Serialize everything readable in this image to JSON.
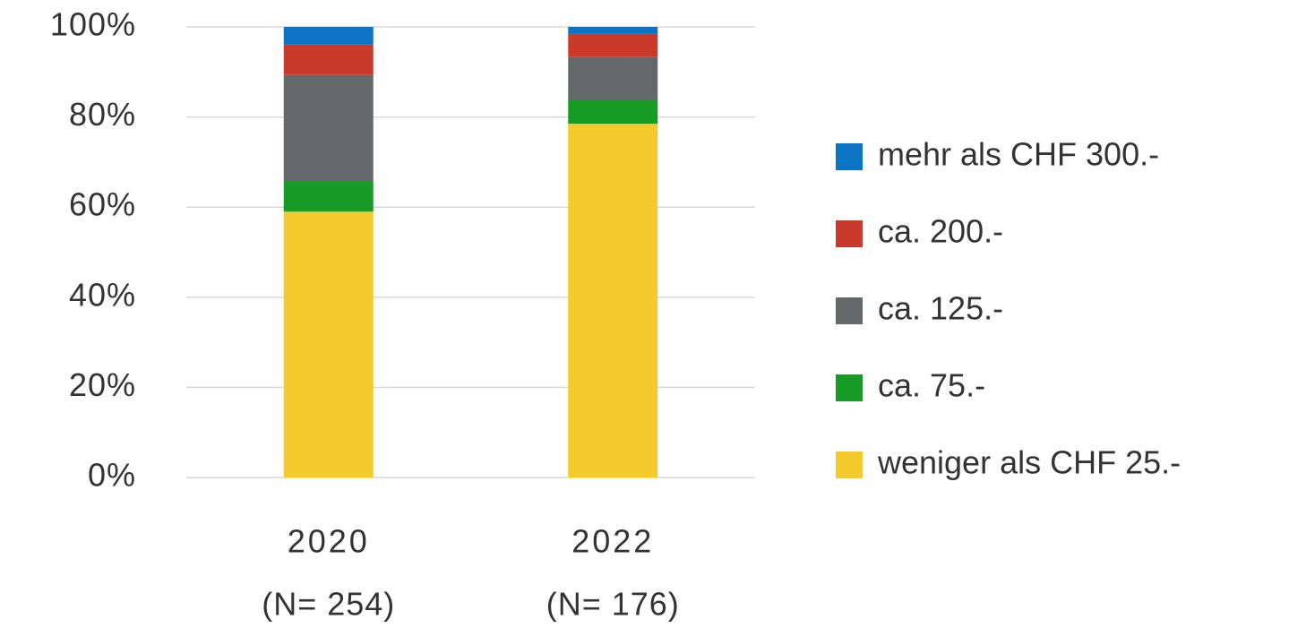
{
  "chart_data": {
    "type": "stacked_bar",
    "categories": [
      "2020",
      "2022"
    ],
    "category_sublabels": [
      "(N= 254)",
      "(N= 176)"
    ],
    "series": [
      {
        "name": "weniger als CHF 25.-",
        "color": "#f4ca2c",
        "values": [
          59.0,
          78.5
        ]
      },
      {
        "name": "ca. 75.-",
        "color": "#169c26",
        "values": [
          6.8,
          5.2
        ]
      },
      {
        "name": "ca. 125.-",
        "color": "#656869",
        "values": [
          23.5,
          9.7
        ]
      },
      {
        "name": "ca. 200.-",
        "color": "#c93a2a",
        "values": [
          6.9,
          5.2
        ]
      },
      {
        "name": "mehr als CHF 300.-",
        "color": "#0b74c4",
        "values": [
          3.8,
          1.4
        ]
      }
    ],
    "ylim": [
      0,
      100
    ],
    "yticks": [
      {
        "value": 0,
        "label": "0%"
      },
      {
        "value": 20,
        "label": "20%"
      },
      {
        "value": 40,
        "label": "40%"
      },
      {
        "value": 60,
        "label": "60%"
      },
      {
        "value": 80,
        "label": "80%"
      },
      {
        "value": 100,
        "label": "100%"
      }
    ],
    "grid": true,
    "legend": "right"
  }
}
